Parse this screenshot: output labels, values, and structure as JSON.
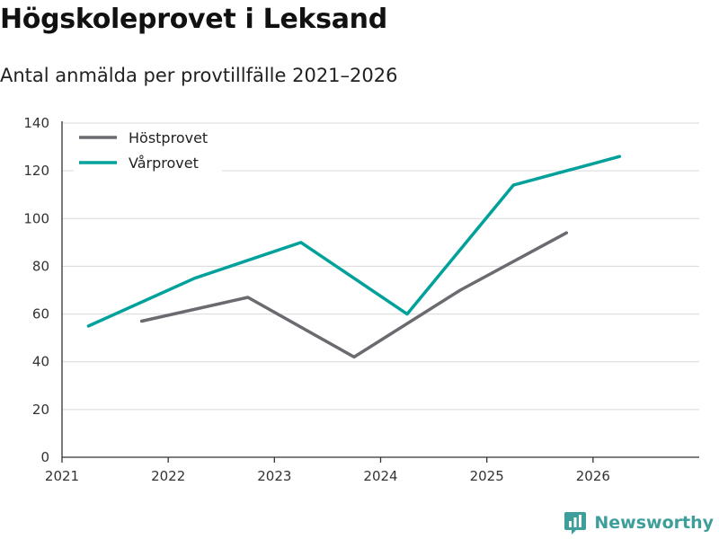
{
  "header": {
    "title": "Högskoleprovet i Leksand",
    "subtitle": "Antal anmälda per provtillfälle 2021–2026"
  },
  "brand": {
    "name": "Newsworthy",
    "icon": "newsworthy-logo-icon",
    "color": "#3e9e9a"
  },
  "chart_data": {
    "type": "line",
    "title": "Högskoleprovet i Leksand",
    "subtitle": "Antal anmälda per provtillfälle 2021–2026",
    "xlabel": "",
    "ylabel": "",
    "xlim": [
      2021,
      2027.0
    ],
    "ylim": [
      0,
      140
    ],
    "x_ticks": [
      "2021",
      "2022",
      "2023",
      "2024",
      "2025",
      "2026"
    ],
    "y_ticks": [
      "0",
      "20",
      "40",
      "60",
      "80",
      "100",
      "120",
      "140"
    ],
    "grid": true,
    "legend_position": "top-left",
    "series": [
      {
        "name": "Höstprovet",
        "color": "#6b6a70",
        "x": [
          2021.75,
          2022.75,
          2023.75,
          2024.75,
          2025.75
        ],
        "values": [
          57,
          67,
          42,
          70,
          94
        ]
      },
      {
        "name": "Vårprovet",
        "color": "#00a19b",
        "x": [
          2021.25,
          2022.25,
          2023.25,
          2024.25,
          2025.25,
          2026.25
        ],
        "values": [
          55,
          75,
          90,
          60,
          114,
          126
        ]
      }
    ]
  }
}
